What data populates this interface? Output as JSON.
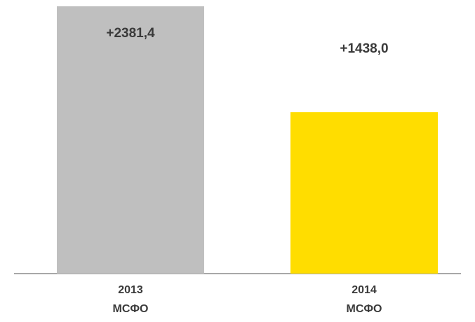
{
  "chart_data": {
    "type": "bar",
    "categories": [
      [
        "2013",
        "МСФО"
      ],
      [
        "2014",
        "МСФО"
      ]
    ],
    "values": [
      2381.4,
      1438.0
    ],
    "value_labels": [
      "+2381,4",
      "+1438,0"
    ],
    "colors": [
      "#bfbfbf",
      "#ffdd00"
    ],
    "ylim": [
      0,
      2400
    ]
  }
}
